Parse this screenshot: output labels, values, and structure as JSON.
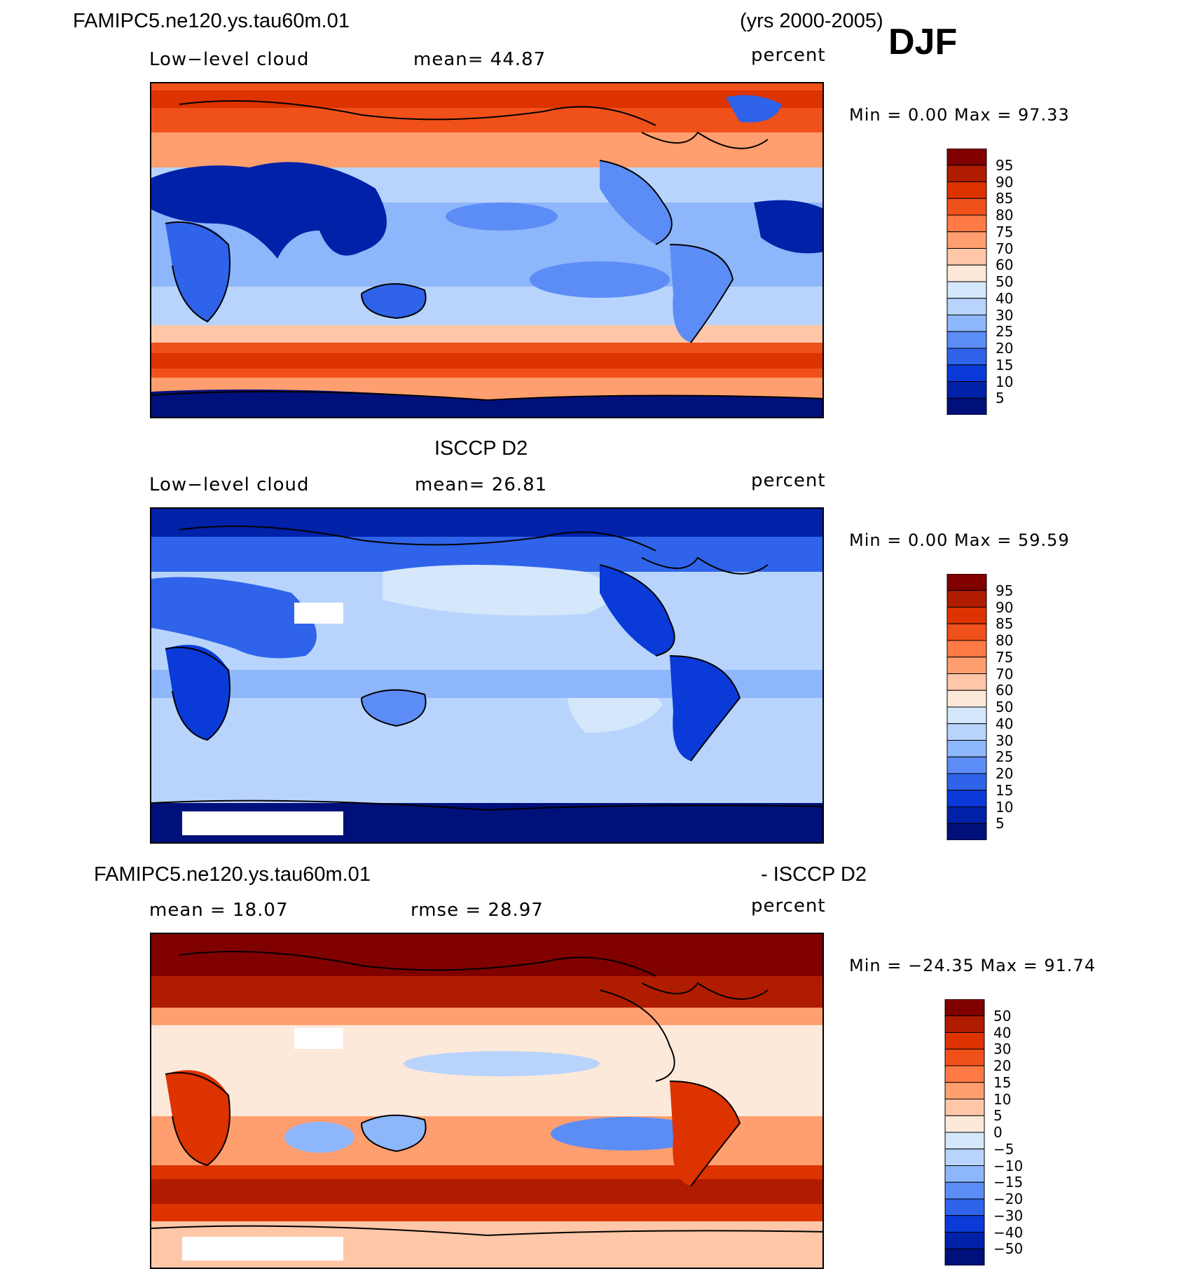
{
  "header": {
    "case_name": "FAMIPC5.ne120.ys.tau60m.01",
    "years": "(yrs 2000-2005)",
    "season": "DJF"
  },
  "panels": [
    {
      "id": "model",
      "variable": "Low−level cloud",
      "stat": "mean=   44.87",
      "units": "percent",
      "minmax": "Min  =     0.00  Max  =    97.33",
      "colorbar": {
        "labels": [
          "95",
          "90",
          "85",
          "80",
          "75",
          "70",
          "60",
          "50",
          "40",
          "30",
          "25",
          "20",
          "15",
          "10",
          "5"
        ],
        "colors": [
          "#800000",
          "#b01c00",
          "#dd3300",
          "#f0501a",
          "#ff7a45",
          "#ff9e6e",
          "#ffc7a8",
          "#fde9da",
          "#d4e7fb",
          "#b8d4fc",
          "#8eb6fb",
          "#5c8df6",
          "#2e63ea",
          "#0a3ad8",
          "#0021a8",
          "#00107a"
        ]
      }
    },
    {
      "id": "obs",
      "title": "ISCCP D2",
      "variable": "Low−level cloud",
      "stat": "mean=   26.81",
      "units": "percent",
      "minmax": "Min  =     0.00  Max  =    59.59",
      "colorbar": {
        "labels": [
          "95",
          "90",
          "85",
          "80",
          "75",
          "70",
          "60",
          "50",
          "40",
          "30",
          "25",
          "20",
          "15",
          "10",
          "5"
        ],
        "colors": [
          "#800000",
          "#b01c00",
          "#dd3300",
          "#f0501a",
          "#ff7a45",
          "#ff9e6e",
          "#ffc7a8",
          "#fde9da",
          "#d4e7fb",
          "#b8d4fc",
          "#8eb6fb",
          "#5c8df6",
          "#2e63ea",
          "#0a3ad8",
          "#0021a8",
          "#00107a"
        ]
      }
    },
    {
      "id": "diff",
      "title_left": "FAMIPC5.ne120.ys.tau60m.01",
      "title_right": "- ISCCP D2",
      "stat_mean": "mean  =    18.07",
      "stat_rmse": "rmse  =    28.97",
      "units": "percent",
      "minmax": "Min  = −24.35  Max  =    91.74",
      "colorbar": {
        "labels": [
          "50",
          "40",
          "30",
          "20",
          "15",
          "10",
          "5",
          "0",
          "−5",
          "−10",
          "−15",
          "−20",
          "−30",
          "−40",
          "−50"
        ],
        "colors": [
          "#800000",
          "#b01c00",
          "#dd3300",
          "#f0501a",
          "#ff7a45",
          "#ff9e6e",
          "#ffc7a8",
          "#fde9da",
          "#d4e7fb",
          "#b8d4fc",
          "#8eb6fb",
          "#5c8df6",
          "#2e63ea",
          "#0a3ad8",
          "#0021a8",
          "#00107a"
        ]
      }
    }
  ],
  "chart_data": [
    {
      "type": "heatmap",
      "title": "FAMIPC5.ne120.ys.tau60m.01 Low-level cloud DJF",
      "variable": "Low-level cloud",
      "units": "percent",
      "mean": 44.87,
      "min": 0.0,
      "max": 97.33,
      "contour_levels": [
        5,
        10,
        15,
        20,
        25,
        30,
        40,
        50,
        60,
        70,
        75,
        80,
        85,
        90,
        95
      ]
    },
    {
      "type": "heatmap",
      "title": "ISCCP D2 Low-level cloud DJF",
      "variable": "Low-level cloud",
      "units": "percent",
      "mean": 26.81,
      "min": 0.0,
      "max": 59.59,
      "contour_levels": [
        5,
        10,
        15,
        20,
        25,
        30,
        40,
        50,
        60,
        70,
        75,
        80,
        85,
        90,
        95
      ]
    },
    {
      "type": "heatmap",
      "title": "FAMIPC5.ne120.ys.tau60m.01 - ISCCP D2",
      "units": "percent",
      "mean": 18.07,
      "rmse": 28.97,
      "min": -24.35,
      "max": 91.74,
      "contour_levels": [
        -50,
        -40,
        -30,
        -20,
        -15,
        -10,
        -5,
        0,
        5,
        10,
        15,
        20,
        30,
        40,
        50
      ]
    }
  ]
}
